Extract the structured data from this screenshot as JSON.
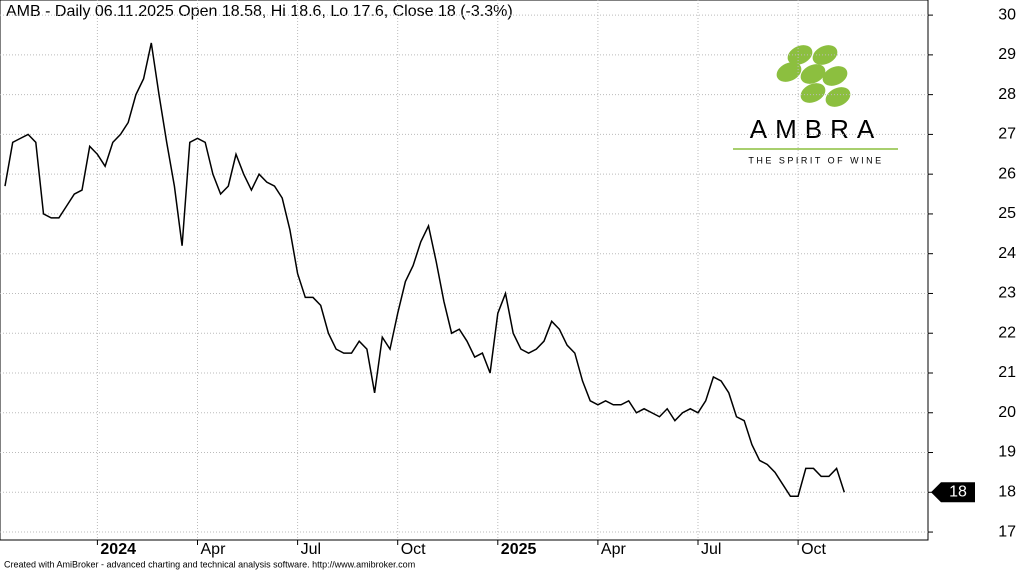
{
  "chart_data": {
    "type": "line",
    "title": "AMB - Daily 06.11.2025 Open 18.58, Hi 18.6, Lo 17.6, Close 18 (-3.3%)",
    "footer": "Created with AmiBroker - advanced charting and technical analysis software. http://www.amibroker.com",
    "logo_text": "AMBRA",
    "logo_tagline": "THE SPIRIT OF WINE",
    "categories": [
      null,
      null,
      null,
      null,
      null,
      null,
      null,
      null,
      null,
      null,
      null,
      null,
      "2024",
      null,
      null,
      null,
      null,
      null,
      null,
      null,
      null,
      null,
      null,
      null,
      null,
      "Apr",
      null,
      null,
      null,
      null,
      null,
      null,
      null,
      null,
      null,
      null,
      null,
      null,
      "Jul",
      null,
      null,
      null,
      null,
      null,
      null,
      null,
      null,
      null,
      null,
      null,
      null,
      "Oct",
      null,
      null,
      null,
      null,
      null,
      null,
      null,
      null,
      null,
      null,
      null,
      null,
      "2025",
      null,
      null,
      null,
      null,
      null,
      null,
      null,
      null,
      null,
      null,
      null,
      null,
      "Apr",
      null,
      null,
      null,
      null,
      null,
      null,
      null,
      null,
      null,
      null,
      null,
      null,
      "Jul",
      null,
      null,
      null,
      null,
      null,
      null,
      null,
      null,
      null,
      null,
      null,
      null,
      "Oct",
      null,
      null,
      null,
      null,
      null,
      null
    ],
    "series": [
      {
        "name": "AMB",
        "color": "#000000",
        "values": [
          25.7,
          26.8,
          26.9,
          27.0,
          26.8,
          25.0,
          24.9,
          24.9,
          25.2,
          25.5,
          25.6,
          26.7,
          26.5,
          26.2,
          26.8,
          27.0,
          27.3,
          28.0,
          28.4,
          29.3,
          28.0,
          26.8,
          25.7,
          24.2,
          26.8,
          26.9,
          26.8,
          26.0,
          25.5,
          25.7,
          26.5,
          26.0,
          25.6,
          26.0,
          25.8,
          25.7,
          25.4,
          24.6,
          23.5,
          22.9,
          22.9,
          22.7,
          22.0,
          21.6,
          21.5,
          21.5,
          21.8,
          21.6,
          20.5,
          21.9,
          21.6,
          22.5,
          23.3,
          23.7,
          24.3,
          24.7,
          23.8,
          22.8,
          22.0,
          22.1,
          21.8,
          21.4,
          21.5,
          21.0,
          22.5,
          23.0,
          22.0,
          21.6,
          21.5,
          21.6,
          21.8,
          22.3,
          22.1,
          21.7,
          21.5,
          20.8,
          20.3,
          20.2,
          20.3,
          20.2,
          20.2,
          20.3,
          20.0,
          20.1,
          20.0,
          19.9,
          20.1,
          19.8,
          20.0,
          20.1,
          20.0,
          20.3,
          20.9,
          20.8,
          20.5,
          19.9,
          19.8,
          19.2,
          18.8,
          18.7,
          18.5,
          18.2,
          17.9,
          17.9,
          18.6,
          18.6,
          18.4,
          18.4,
          18.6,
          18.0
        ]
      }
    ],
    "last_value": 18,
    "ylim": [
      16.8,
      30.38
    ],
    "yticks": [
      17,
      18,
      19,
      20,
      21,
      22,
      23,
      24,
      25,
      26,
      27,
      28,
      29,
      30
    ],
    "grid": true
  }
}
